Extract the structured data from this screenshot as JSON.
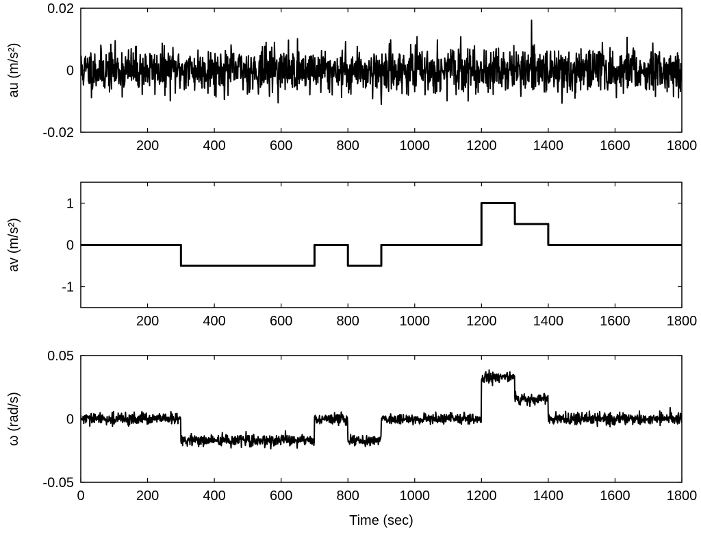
{
  "chart_data": [
    {
      "type": "line",
      "ylabel": "au (m/s²)",
      "xlim": [
        0,
        1800
      ],
      "ylim": [
        -0.02,
        0.02
      ],
      "yticks": [
        -0.02,
        0,
        0.02
      ],
      "ytick_labels": [
        "-0.02",
        "0",
        "0.02"
      ],
      "xticks": [
        200,
        400,
        600,
        800,
        1000,
        1200,
        1400,
        1600,
        1800
      ],
      "xtick_labels": [
        "200",
        "400",
        "600",
        "800",
        "1000",
        "1200",
        "1400",
        "1600",
        "1800"
      ],
      "series": [
        {
          "noise": {
            "level": 0,
            "std": 0.0035,
            "seed": 11,
            "spikes": [
              [
                900,
                -0.011
              ],
              [
                1480,
                -0.009
              ],
              [
                580,
                0.009
              ]
            ]
          }
        }
      ],
      "color": "#000000"
    },
    {
      "type": "line",
      "ylabel": "av (m/s²)",
      "xlim": [
        0,
        1800
      ],
      "ylim": [
        -1.5,
        1.5
      ],
      "yticks": [
        -1,
        0,
        1
      ],
      "ytick_labels": [
        "-1",
        "0",
        "1"
      ],
      "xticks": [
        200,
        400,
        600,
        800,
        1000,
        1200,
        1400,
        1600,
        1800
      ],
      "xtick_labels": [
        "200",
        "400",
        "600",
        "800",
        "1000",
        "1200",
        "1400",
        "1600",
        "1800"
      ],
      "series": [
        {
          "x": [
            0,
            300,
            300,
            700,
            700,
            800,
            800,
            900,
            900,
            1200,
            1200,
            1300,
            1300,
            1400,
            1400,
            1800
          ],
          "y": [
            0,
            0,
            -0.5,
            -0.5,
            0,
            0,
            -0.5,
            -0.5,
            0,
            0,
            1,
            1,
            0.5,
            0.5,
            0,
            0
          ]
        }
      ],
      "color": "#000000"
    },
    {
      "type": "line",
      "ylabel": "ω (rad/s)",
      "xlabel": "Time (sec)",
      "xlim": [
        0,
        1800
      ],
      "ylim": [
        -0.05,
        0.05
      ],
      "yticks": [
        -0.05,
        0,
        0.05
      ],
      "ytick_labels": [
        "-0.05",
        "0",
        "0.05"
      ],
      "xticks": [
        0,
        200,
        400,
        600,
        800,
        1000,
        1200,
        1400,
        1600,
        1800
      ],
      "xtick_labels": [
        "0",
        "200",
        "400",
        "600",
        "800",
        "1000",
        "1200",
        "1400",
        "1600",
        "1800"
      ],
      "series": [
        {
          "noise": {
            "std": 0.0022,
            "seed": 29,
            "segments": [
              [
                0,
                300,
                0
              ],
              [
                300,
                700,
                -0.017
              ],
              [
                700,
                800,
                0
              ],
              [
                800,
                900,
                -0.017
              ],
              [
                900,
                1200,
                0
              ],
              [
                1200,
                1300,
                0.033
              ],
              [
                1300,
                1400,
                0.016
              ],
              [
                1400,
                1800,
                0
              ]
            ]
          }
        }
      ],
      "color": "#000000"
    }
  ]
}
